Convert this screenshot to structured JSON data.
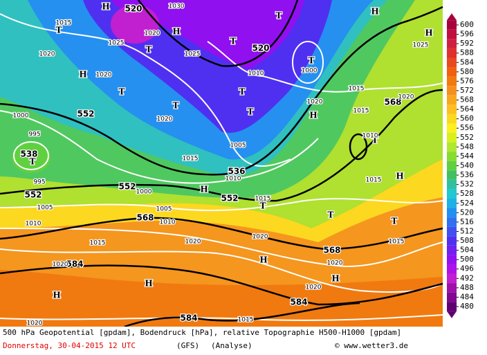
{
  "map": {
    "labels": [
      "520",
      "1030",
      "H",
      "H",
      "1020",
      "1025",
      "T",
      "T",
      "1015",
      "H",
      "1020",
      "T",
      "1020",
      "T",
      "1025",
      "T",
      "T",
      "520",
      "H",
      "H",
      "1025",
      "T",
      "1000",
      "1010",
      "T",
      "1020",
      "T",
      "1020",
      "1015",
      "568",
      "1020",
      "H",
      "1015",
      "552",
      "1000",
      "995",
      "538",
      "T",
      "T",
      "1010",
      "1005",
      "1015",
      "536",
      "1010",
      "H",
      "1015",
      "552",
      "552",
      "1000",
      "H",
      "552",
      "1015",
      "T",
      "995",
      "1005",
      "1005",
      "568",
      "1010",
      "1010",
      "T",
      "T",
      "1020",
      "1020",
      "1015",
      "1015",
      "568",
      "H",
      "584",
      "1020",
      "1020",
      "H",
      "H",
      "1020",
      "H",
      "584",
      "584",
      "1015",
      "1020"
    ]
  },
  "legend": {
    "ticks": [
      600,
      596,
      592,
      588,
      584,
      580,
      576,
      572,
      568,
      564,
      560,
      556,
      552,
      548,
      544,
      540,
      536,
      532,
      528,
      524,
      520,
      516,
      512,
      508,
      504,
      500,
      496,
      492,
      488,
      484,
      480
    ],
    "colors": [
      "#a8003c",
      "#c01040",
      "#d02040",
      "#e03030",
      "#e84a20",
      "#f06010",
      "#f07a10",
      "#f59020",
      "#f8a820",
      "#fcc020",
      "#fcd820",
      "#fcf020",
      "#d8f020",
      "#b0e830",
      "#88dc30",
      "#60d040",
      "#40c060",
      "#30c0a0",
      "#20c8d0",
      "#20b0e8",
      "#2090f0",
      "#3070f0",
      "#4050f0",
      "#5030f0",
      "#7020f0",
      "#9010f0",
      "#b010e8",
      "#c020d0",
      "#a010a8",
      "#800890",
      "#600070"
    ]
  },
  "footer": {
    "caption": "500 hPa Geopotential [gpdam], Bodendruck [hPa], relative Topographie H500-H1000 [gpdam]",
    "date": "Donnerstag, 30-04-2015  12 UTC",
    "model": "(GFS)",
    "run": "(Analyse)",
    "credit": "© www.wetter3.de"
  }
}
